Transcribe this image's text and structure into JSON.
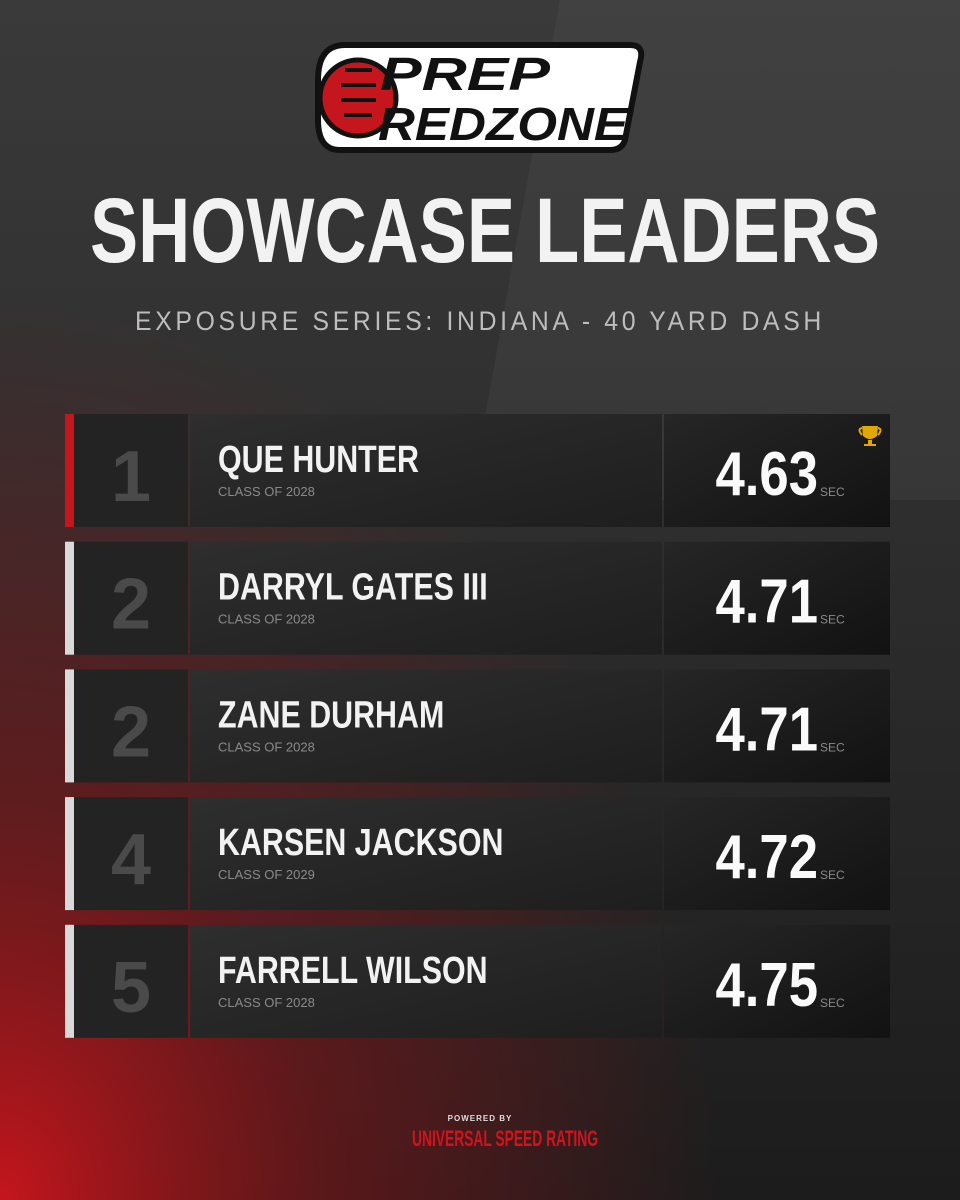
{
  "logo": {
    "line1": "PREP",
    "line2": "REDZONE"
  },
  "title": "SHOWCASE LEADERS",
  "subtitle": "EXPOSURE SERIES: INDIANA - 40 YARD DASH",
  "rows": [
    {
      "rank": "1",
      "name": "QUE HUNTER",
      "class": "CLASS OF 2028",
      "time": "4.63",
      "unit": "SEC"
    },
    {
      "rank": "2",
      "name": "DARRYL GATES III",
      "class": "CLASS OF 2028",
      "time": "4.71",
      "unit": "SEC"
    },
    {
      "rank": "2",
      "name": "ZANE DURHAM",
      "class": "CLASS OF 2028",
      "time": "4.71",
      "unit": "SEC"
    },
    {
      "rank": "4",
      "name": "KARSEN JACKSON",
      "class": "CLASS OF 2029",
      "time": "4.72",
      "unit": "SEC"
    },
    {
      "rank": "5",
      "name": "FARRELL WILSON",
      "class": "CLASS OF 2028",
      "time": "4.75",
      "unit": "SEC"
    }
  ],
  "footer": {
    "powered": "POWERED BY",
    "brand": "UNIVERSAL SPEED RATING"
  }
}
